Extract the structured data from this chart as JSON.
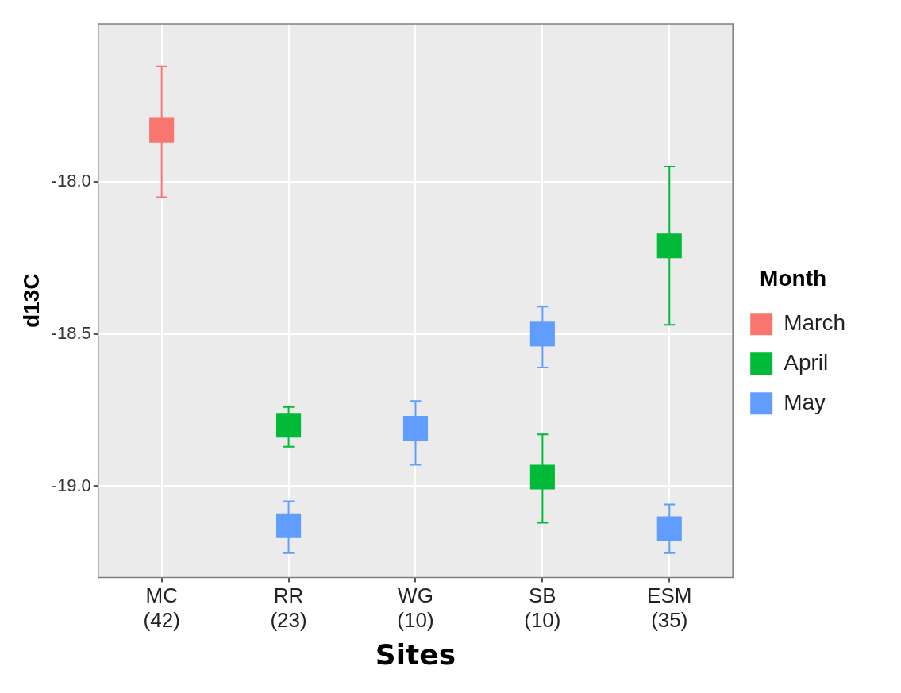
{
  "chart_data": {
    "type": "scatter",
    "xlabel": "Sites",
    "ylabel": "d13C",
    "legend_title": "Month",
    "categories": [
      "MC\n(42)",
      "RR\n(23)",
      "WG\n(10)",
      "SB\n(10)",
      "ESM\n(35)"
    ],
    "series": [
      {
        "name": "March",
        "color": "#f8766d",
        "x": [
          "MC\n(42)"
        ],
        "values": [
          -17.83
        ],
        "errors": [
          [
            -18.05,
            -17.62
          ]
        ]
      },
      {
        "name": "April",
        "color": "#00ba38",
        "x": [
          "RR\n(23)",
          "SB\n(10)",
          "ESM\n(35)"
        ],
        "values": [
          -18.8,
          -18.97,
          -18.21
        ],
        "errors": [
          [
            -18.87,
            -18.74
          ],
          [
            -19.12,
            -18.83
          ],
          [
            -18.47,
            -17.95
          ]
        ]
      },
      {
        "name": "May",
        "color": "#619cff",
        "x": [
          "RR\n(23)",
          "WG\n(10)",
          "SB\n(10)",
          "ESM\n(35)"
        ],
        "values": [
          -19.13,
          -18.81,
          -18.5,
          -19.14
        ],
        "errors": [
          [
            -19.22,
            -19.05
          ],
          [
            -18.93,
            -18.72
          ],
          [
            -18.61,
            -18.41
          ],
          [
            -19.22,
            -19.06
          ]
        ]
      }
    ],
    "ylim": [
      -19.3,
      -17.48
    ],
    "yticks": [
      {
        "value": -19,
        "label": "-19.0"
      },
      -18.5,
      {
        "value": -18,
        "label": "-18.0"
      }
    ],
    "grid": true,
    "legend": "right",
    "marker": "square"
  }
}
